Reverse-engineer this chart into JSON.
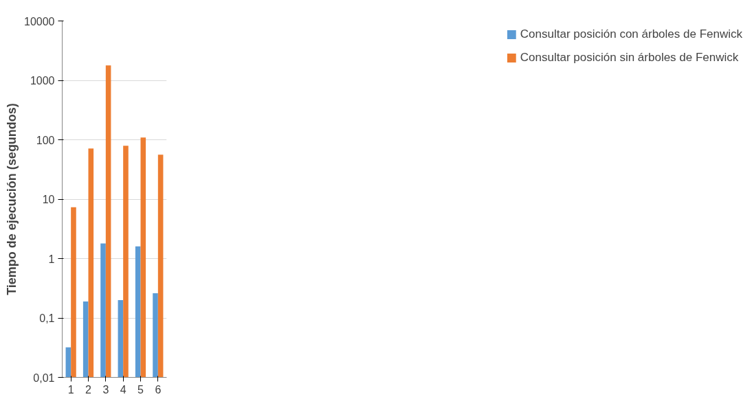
{
  "chart_data": {
    "type": "bar",
    "ylabel": "Tiempo de ejecución (segundos)",
    "categories": [
      "1",
      "2",
      "3",
      "4",
      "5",
      "6"
    ],
    "series": [
      {
        "name": "Consultar posición con árboles de Fenwick",
        "color": "#5b9bd5",
        "values": [
          0.032,
          0.19,
          1.8,
          0.2,
          1.6,
          0.26
        ]
      },
      {
        "name": "Consultar posición sin árboles de Fenwick",
        "color": "#ed7d31",
        "values": [
          7.3,
          71,
          1780,
          79,
          109,
          56
        ]
      }
    ],
    "log": "y",
    "ylim": [
      0.01,
      10000
    ],
    "yticks": [
      {
        "value": 0.01,
        "label": "0,01"
      },
      {
        "value": 0.1,
        "label": "0,1"
      },
      1,
      10,
      100,
      1000,
      10000
    ],
    "grid": "y",
    "legend": "right"
  }
}
